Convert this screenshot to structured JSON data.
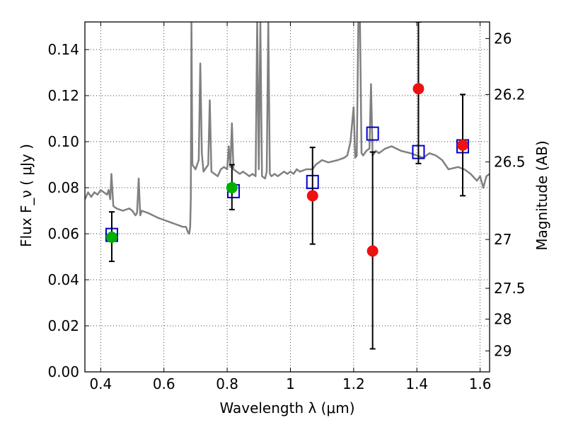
{
  "chart_data": {
    "type": "scatter",
    "xlabel": "Wavelength λ (μm)",
    "ylabel": "Flux F_ν ( μJy )",
    "y2label": "Magnitude (AB)",
    "xlim": [
      0.35,
      1.63
    ],
    "ylim": [
      0.0,
      0.152
    ],
    "grid": true,
    "x_ticks": [
      0.4,
      0.6,
      0.8,
      1.0,
      1.2,
      1.4,
      1.6
    ],
    "x_tick_labels": [
      "0.4",
      "0.6",
      "0.8",
      "1",
      "1.2",
      "1.4",
      "1.6"
    ],
    "y_ticks": [
      0.0,
      0.02,
      0.04,
      0.06,
      0.08,
      0.1,
      0.12,
      0.14
    ],
    "y_tick_labels": [
      "0.00",
      "0.02",
      "0.04",
      "0.06",
      "0.08",
      "0.10",
      "0.12",
      "0.14"
    ],
    "y2_ticks": [
      {
        "flux": 0.1448,
        "label": "26"
      },
      {
        "flux": 0.1205,
        "label": "26.2"
      },
      {
        "flux": 0.0912,
        "label": "26.5"
      },
      {
        "flux": 0.0575,
        "label": "27"
      },
      {
        "flux": 0.0363,
        "label": "27.5"
      },
      {
        "flux": 0.0229,
        "label": "28"
      },
      {
        "flux": 0.0091,
        "label": "29"
      }
    ],
    "series": [
      {
        "kind": "line",
        "color": "#808080",
        "x": [
          0.35,
          0.36,
          0.37,
          0.38,
          0.39,
          0.4,
          0.41,
          0.42,
          0.425,
          0.43,
          0.434,
          0.44,
          0.45,
          0.47,
          0.49,
          0.5,
          0.51,
          0.515,
          0.52,
          0.525,
          0.53,
          0.55,
          0.58,
          0.6,
          0.62,
          0.64,
          0.66,
          0.67,
          0.675,
          0.68,
          0.683,
          0.685,
          0.687,
          0.69,
          0.7,
          0.71,
          0.715,
          0.72,
          0.725,
          0.73,
          0.74,
          0.745,
          0.75,
          0.76,
          0.77,
          0.78,
          0.79,
          0.8,
          0.805,
          0.81,
          0.815,
          0.82,
          0.83,
          0.84,
          0.85,
          0.86,
          0.87,
          0.88,
          0.89,
          0.895,
          0.9,
          0.905,
          0.91,
          0.92,
          0.925,
          0.93,
          0.935,
          0.94,
          0.95,
          0.96,
          0.97,
          0.98,
          0.99,
          1.0,
          1.01,
          1.02,
          1.03,
          1.05,
          1.07,
          1.08,
          1.09,
          1.1,
          1.12,
          1.15,
          1.17,
          1.18,
          1.19,
          1.2,
          1.205,
          1.21,
          1.215,
          1.22,
          1.225,
          1.23,
          1.24,
          1.25,
          1.255,
          1.26,
          1.27,
          1.28,
          1.3,
          1.32,
          1.35,
          1.38,
          1.4,
          1.42,
          1.44,
          1.46,
          1.48,
          1.5,
          1.53,
          1.55,
          1.57,
          1.59,
          1.6,
          1.61,
          1.62,
          1.63
        ],
        "y": [
          0.075,
          0.078,
          0.076,
          0.078,
          0.077,
          0.079,
          0.078,
          0.077,
          0.079,
          0.075,
          0.086,
          0.072,
          0.071,
          0.07,
          0.071,
          0.07,
          0.068,
          0.069,
          0.084,
          0.068,
          0.07,
          0.069,
          0.067,
          0.066,
          0.065,
          0.064,
          0.063,
          0.063,
          0.061,
          0.06,
          0.063,
          0.075,
          0.152,
          0.09,
          0.088,
          0.092,
          0.134,
          0.095,
          0.087,
          0.088,
          0.09,
          0.118,
          0.087,
          0.086,
          0.085,
          0.088,
          0.089,
          0.088,
          0.098,
          0.089,
          0.108,
          0.088,
          0.087,
          0.086,
          0.087,
          0.086,
          0.085,
          0.086,
          0.085,
          0.152,
          0.088,
          0.152,
          0.085,
          0.084,
          0.087,
          0.152,
          0.086,
          0.085,
          0.086,
          0.085,
          0.086,
          0.087,
          0.086,
          0.087,
          0.086,
          0.088,
          0.087,
          0.088,
          0.088,
          0.09,
          0.091,
          0.092,
          0.091,
          0.092,
          0.093,
          0.094,
          0.1,
          0.115,
          0.093,
          0.094,
          0.152,
          0.152,
          0.095,
          0.094,
          0.096,
          0.097,
          0.125,
          0.094,
          0.096,
          0.095,
          0.097,
          0.098,
          0.096,
          0.095,
          0.094,
          0.093,
          0.095,
          0.094,
          0.092,
          0.088,
          0.089,
          0.088,
          0.086,
          0.083,
          0.085,
          0.08,
          0.085,
          0.086
        ]
      },
      {
        "kind": "squares",
        "color": "#0000cc",
        "x": [
          0.435,
          0.82,
          1.07,
          1.26,
          1.405,
          1.545
        ],
        "y": [
          0.0595,
          0.0785,
          0.0825,
          0.1035,
          0.0955,
          0.098
        ]
      },
      {
        "kind": "points",
        "color": "#00b000",
        "x": [
          0.435,
          0.815
        ],
        "y": [
          0.0585,
          0.08
        ],
        "yerr_low": [
          0.048,
          0.0705
        ],
        "yerr_high": [
          0.0695,
          0.09
        ]
      },
      {
        "kind": "points",
        "color": "#ee1111",
        "x": [
          1.07,
          1.26,
          1.405,
          1.545
        ],
        "y": [
          0.0765,
          0.0525,
          0.123,
          0.0985
        ],
        "yerr_low": [
          0.0555,
          0.01,
          0.0905,
          0.0765
        ],
        "yerr_high": [
          0.0975,
          0.0955,
          0.152,
          0.1205
        ]
      }
    ]
  }
}
